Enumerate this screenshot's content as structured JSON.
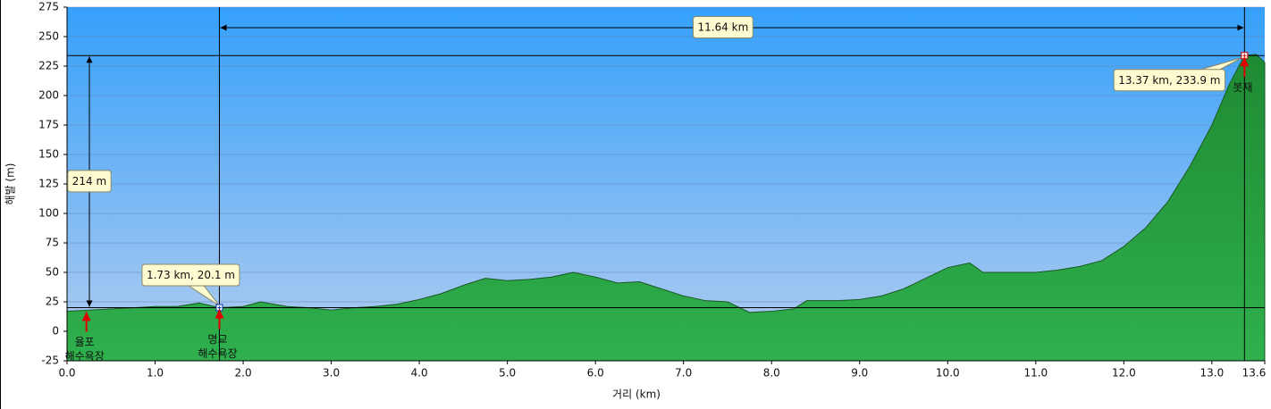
{
  "chart_data": {
    "type": "area",
    "x_label": "거리 (km)",
    "y_label": "해발 (m)",
    "x": [
      0.0,
      0.25,
      0.5,
      0.75,
      1.0,
      1.25,
      1.5,
      1.73,
      2.0,
      2.2,
      2.5,
      2.75,
      3.0,
      3.25,
      3.5,
      3.75,
      4.0,
      4.25,
      4.5,
      4.75,
      5.0,
      5.25,
      5.5,
      5.75,
      6.0,
      6.25,
      6.5,
      6.75,
      7.0,
      7.25,
      7.5,
      7.75,
      8.0,
      8.25,
      8.4,
      8.75,
      9.0,
      9.25,
      9.5,
      9.75,
      10.0,
      10.25,
      10.4,
      10.75,
      11.0,
      11.25,
      11.5,
      11.75,
      12.0,
      12.25,
      12.5,
      12.75,
      13.0,
      13.2,
      13.37,
      13.5,
      13.6
    ],
    "values": [
      17,
      18,
      19,
      20,
      21,
      21,
      24,
      20.1,
      21,
      25,
      21,
      20,
      18,
      20,
      21,
      23,
      27,
      32,
      39,
      45,
      43,
      44,
      46,
      50,
      46,
      41,
      42,
      36,
      30,
      26,
      25,
      16,
      17,
      19,
      26,
      26,
      27,
      30,
      36,
      45,
      54,
      58,
      50,
      50,
      50,
      52,
      55,
      60,
      72,
      88,
      110,
      140,
      175,
      210,
      233.9,
      235,
      228
    ],
    "xlim": [
      0,
      13.6
    ],
    "ylim": [
      -25,
      275
    ],
    "xticks": [
      {
        "value": 0,
        "label": "0.0"
      },
      {
        "value": 1,
        "label": "1.0"
      },
      {
        "value": 2,
        "label": "2.0"
      },
      {
        "value": 3,
        "label": "3.0"
      },
      {
        "value": 4,
        "label": "4.0"
      },
      {
        "value": 5,
        "label": "5.0"
      },
      {
        "value": 6,
        "label": "6.0"
      },
      {
        "value": 7,
        "label": "7.0"
      },
      {
        "value": 8,
        "label": "8.0"
      },
      {
        "value": 9,
        "label": "9.0"
      },
      {
        "value": 10,
        "label": "10.0"
      },
      {
        "value": 11,
        "label": "11.0"
      },
      {
        "value": 12,
        "label": "12.0"
      },
      {
        "value": 13,
        "label": "13.0"
      },
      13.6
    ],
    "yticks": [
      -25,
      0,
      25,
      50,
      75,
      100,
      125,
      150,
      175,
      200,
      225,
      250,
      275
    ],
    "grid": true,
    "points": [
      {
        "x": 1.73,
        "y": 20.1,
        "label": "1.73 km, 20.1 m"
      },
      {
        "x": 13.37,
        "y": 233.9,
        "label": "13.37 km, 233.9 m"
      }
    ],
    "distance_label": "11.64 km",
    "height_label": "214 m",
    "waypoints": [
      {
        "x": 0.22,
        "lines": [
          "율포",
          "해수욕장"
        ]
      },
      {
        "x": 1.73,
        "lines": [
          "명교",
          "해수욕장"
        ]
      },
      {
        "x": 13.37,
        "lines": [
          "봇재"
        ]
      }
    ]
  }
}
